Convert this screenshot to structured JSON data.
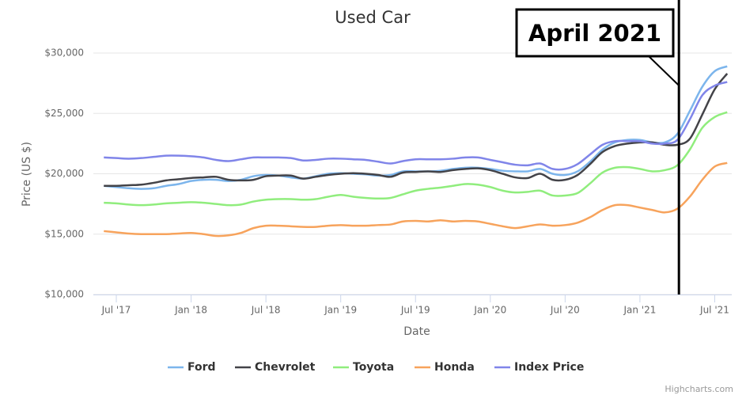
{
  "chart_data": {
    "type": "line",
    "title": "Used Car",
    "x_label": "Date",
    "y_label": "Price (US $)",
    "credits": "Highcharts.com",
    "annotation": {
      "text": "April 2021",
      "x": "2021-04"
    },
    "x": [
      "2017-06",
      "2017-07",
      "2017-08",
      "2017-09",
      "2017-10",
      "2017-11",
      "2017-12",
      "2018-01",
      "2018-02",
      "2018-03",
      "2018-04",
      "2018-05",
      "2018-06",
      "2018-07",
      "2018-08",
      "2018-09",
      "2018-10",
      "2018-11",
      "2018-12",
      "2019-01",
      "2019-02",
      "2019-03",
      "2019-04",
      "2019-05",
      "2019-06",
      "2019-07",
      "2019-08",
      "2019-09",
      "2019-10",
      "2019-11",
      "2019-12",
      "2020-01",
      "2020-02",
      "2020-03",
      "2020-04",
      "2020-05",
      "2020-06",
      "2020-07",
      "2020-08",
      "2020-09",
      "2020-10",
      "2020-11",
      "2020-12",
      "2021-01",
      "2021-02",
      "2021-03",
      "2021-04",
      "2021-05",
      "2021-06",
      "2021-07",
      "2021-08"
    ],
    "xlim": [
      "2017-05",
      "2021-09"
    ],
    "xticks": [
      {
        "value": "2017-07",
        "label": "Jul '17"
      },
      {
        "value": "2018-01",
        "label": "Jan '18"
      },
      {
        "value": "2018-07",
        "label": "Jul '18"
      },
      {
        "value": "2019-01",
        "label": "Jan '19"
      },
      {
        "value": "2019-07",
        "label": "Jul '19"
      },
      {
        "value": "2020-01",
        "label": "Jan '20"
      },
      {
        "value": "2020-07",
        "label": "Jul '20"
      },
      {
        "value": "2021-01",
        "label": "Jan '21"
      },
      {
        "value": "2021-07",
        "label": "Jul '21"
      }
    ],
    "ylim": [
      10000,
      30000
    ],
    "yticks": [
      {
        "value": 10000,
        "label": "$10,000"
      },
      {
        "value": 15000,
        "label": "$15,000"
      },
      {
        "value": 20000,
        "label": "$20,000"
      },
      {
        "value": 25000,
        "label": "$25,000"
      },
      {
        "value": 30000,
        "label": "$30,000"
      }
    ],
    "grid": true,
    "legend": "bottom",
    "series": [
      {
        "name": "Ford",
        "color": "#7cb5ec",
        "values": [
          19000,
          18900,
          18800,
          18750,
          18800,
          19000,
          19150,
          19400,
          19500,
          19500,
          19400,
          19500,
          19800,
          19900,
          19850,
          19700,
          19600,
          19800,
          20000,
          20050,
          20000,
          19950,
          19850,
          19900,
          20200,
          20200,
          20200,
          20250,
          20400,
          20500,
          20500,
          20400,
          20250,
          20200,
          20200,
          20400,
          20000,
          19900,
          20200,
          21000,
          22000,
          22600,
          22800,
          22800,
          22600,
          22600,
          23300,
          25200,
          27200,
          28500,
          28900
        ]
      },
      {
        "name": "Chevrolet",
        "color": "#434348",
        "values": [
          19000,
          19000,
          19050,
          19100,
          19250,
          19450,
          19550,
          19650,
          19700,
          19750,
          19500,
          19450,
          19500,
          19800,
          19850,
          19850,
          19600,
          19750,
          19900,
          20000,
          20050,
          20000,
          19900,
          19750,
          20100,
          20150,
          20200,
          20150,
          20300,
          20400,
          20450,
          20300,
          20000,
          19700,
          19650,
          20000,
          19500,
          19500,
          19900,
          20800,
          21800,
          22300,
          22500,
          22600,
          22600,
          22400,
          22400,
          22900,
          24900,
          27000,
          28300
        ]
      },
      {
        "name": "Toyota",
        "color": "#90ed7d",
        "values": [
          17600,
          17550,
          17450,
          17400,
          17450,
          17550,
          17600,
          17650,
          17600,
          17500,
          17400,
          17450,
          17700,
          17850,
          17900,
          17900,
          17850,
          17900,
          18100,
          18250,
          18100,
          18000,
          17950,
          18000,
          18300,
          18600,
          18750,
          18850,
          19000,
          19150,
          19100,
          18900,
          18600,
          18450,
          18500,
          18600,
          18200,
          18200,
          18400,
          19200,
          20100,
          20500,
          20550,
          20400,
          20200,
          20300,
          20700,
          22000,
          23800,
          24700,
          25100
        ]
      },
      {
        "name": "Honda",
        "color": "#f7a35c",
        "values": [
          15250,
          15150,
          15050,
          15000,
          15000,
          15000,
          15050,
          15100,
          15000,
          14850,
          14900,
          15100,
          15500,
          15700,
          15700,
          15650,
          15600,
          15600,
          15700,
          15750,
          15700,
          15700,
          15750,
          15800,
          16050,
          16100,
          16050,
          16150,
          16050,
          16100,
          16050,
          15850,
          15650,
          15500,
          15650,
          15800,
          15700,
          15750,
          15950,
          16400,
          17000,
          17400,
          17400,
          17200,
          17000,
          16800,
          17100,
          18100,
          19500,
          20600,
          20900
        ]
      },
      {
        "name": "Index Price",
        "color": "#8085e9",
        "values": [
          21350,
          21300,
          21250,
          21300,
          21400,
          21500,
          21500,
          21450,
          21350,
          21150,
          21050,
          21200,
          21350,
          21350,
          21350,
          21300,
          21100,
          21150,
          21250,
          21250,
          21200,
          21150,
          21000,
          20850,
          21050,
          21200,
          21200,
          21200,
          21250,
          21350,
          21350,
          21150,
          20950,
          20750,
          20700,
          20850,
          20400,
          20400,
          20800,
          21600,
          22400,
          22700,
          22700,
          22700,
          22500,
          22500,
          22800,
          24500,
          26500,
          27300,
          27600
        ]
      }
    ]
  }
}
